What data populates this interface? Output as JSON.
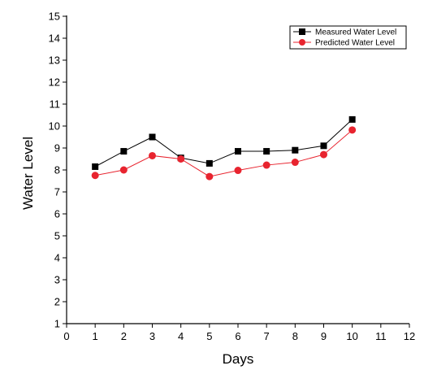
{
  "chart_data": {
    "type": "line",
    "title": "",
    "xlabel": "Days",
    "ylabel": "Water Level",
    "xlim": [
      0,
      12
    ],
    "ylim": [
      1,
      15
    ],
    "xticks": [
      "0",
      "1",
      "2",
      "3",
      "4",
      "5",
      "6",
      "7",
      "8",
      "9",
      "10",
      "11",
      "12"
    ],
    "yticks": [
      "1",
      "2",
      "3",
      "4",
      "5",
      "6",
      "7",
      "8",
      "9",
      "10",
      "11",
      "12",
      "13",
      "14",
      "15"
    ],
    "grid": false,
    "legend_position": "top-right",
    "x": [
      1,
      2,
      3,
      4,
      5,
      6,
      7,
      8,
      9,
      10
    ],
    "series": [
      {
        "name": "Measured Water Level",
        "color": "#000000",
        "marker": "square",
        "values": [
          8.15,
          8.85,
          9.5,
          8.55,
          8.3,
          8.85,
          8.85,
          8.9,
          9.1,
          10.3
        ]
      },
      {
        "name": "Predicted Water Level",
        "color": "#e8242f",
        "marker": "circle",
        "values": [
          7.75,
          8.0,
          8.65,
          8.5,
          7.7,
          7.98,
          8.22,
          8.35,
          8.7,
          9.82
        ]
      }
    ]
  }
}
